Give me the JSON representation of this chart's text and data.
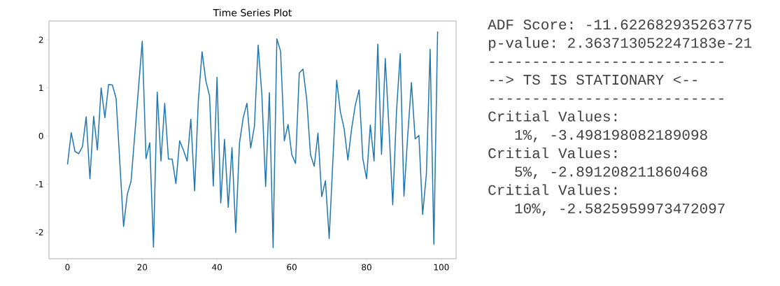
{
  "chart_data": {
    "type": "line",
    "title": "Time Series Plot",
    "x": [
      0,
      1,
      2,
      3,
      4,
      5,
      6,
      7,
      8,
      9,
      10,
      11,
      12,
      13,
      14,
      15,
      16,
      17,
      18,
      19,
      20,
      21,
      22,
      23,
      24,
      25,
      26,
      27,
      28,
      29,
      30,
      31,
      32,
      33,
      34,
      35,
      36,
      37,
      38,
      39,
      40,
      41,
      42,
      43,
      44,
      45,
      46,
      47,
      48,
      49,
      50,
      51,
      52,
      53,
      54,
      55,
      56,
      57,
      58,
      59,
      60,
      61,
      62,
      63,
      64,
      65,
      66,
      67,
      68,
      69,
      70,
      71,
      72,
      73,
      74,
      75,
      76,
      77,
      78,
      79,
      80,
      81,
      82,
      83,
      84,
      85,
      86,
      87,
      88,
      89,
      90,
      91,
      92,
      93,
      94,
      95,
      96,
      97,
      98,
      99
    ],
    "series": [
      {
        "color": "#1f77b4",
        "values": [
          -0.59,
          0.07,
          -0.32,
          -0.37,
          -0.22,
          0.4,
          -0.89,
          0.41,
          -0.29,
          1.0,
          0.38,
          1.07,
          1.06,
          0.78,
          -0.55,
          -1.88,
          -1.21,
          -0.94,
          0.03,
          1.0,
          1.97,
          -0.47,
          -0.14,
          -2.31,
          0.91,
          -0.52,
          0.68,
          -0.48,
          -0.48,
          -0.99,
          -0.1,
          -0.29,
          -0.52,
          0.35,
          -1.14,
          0.73,
          1.75,
          1.15,
          0.83,
          -1.04,
          1.22,
          -1.39,
          -0.07,
          -1.48,
          -0.24,
          -2.01,
          -0.15,
          0.38,
          0.68,
          -0.25,
          0.2,
          1.89,
          0.85,
          -1.05,
          0.9,
          -2.32,
          2.02,
          1.76,
          -0.1,
          0.24,
          -0.39,
          -0.57,
          1.31,
          1.39,
          0.75,
          -0.39,
          -0.63,
          0.06,
          -1.26,
          -0.93,
          -2.13,
          -0.49,
          1.16,
          0.5,
          0.15,
          -0.5,
          0.15,
          0.65,
          0.96,
          -0.47,
          -0.89,
          0.23,
          -0.52,
          1.91,
          -0.38,
          1.61,
          0.15,
          -1.43,
          0.5,
          1.71,
          -1.25,
          0.0,
          1.11,
          -0.06,
          0.01,
          -1.63,
          -0.79,
          1.8,
          -2.25,
          2.17
        ]
      }
    ],
    "xlim": [
      -4.95,
      103.95
    ],
    "ylim": [
      -2.55,
      2.39
    ],
    "xticks": [
      0,
      20,
      40,
      60,
      80,
      100
    ],
    "yticks": [
      -2,
      -1,
      0,
      1,
      2
    ],
    "marker": "none",
    "line_style": "solid",
    "annotations": [
      "ADF Score: -11.622682935263775",
      "p-value: 2.363713052247183e-21",
      "---------------------------",
      "--> TS IS STATIONARY <--",
      "---------------------------",
      "Critial Values:",
      "1%, -3.498198082189098",
      "Critial Values:",
      "5%, -2.891208211860468",
      "Critial Values:",
      "10%, -2.5825959973472097"
    ]
  }
}
